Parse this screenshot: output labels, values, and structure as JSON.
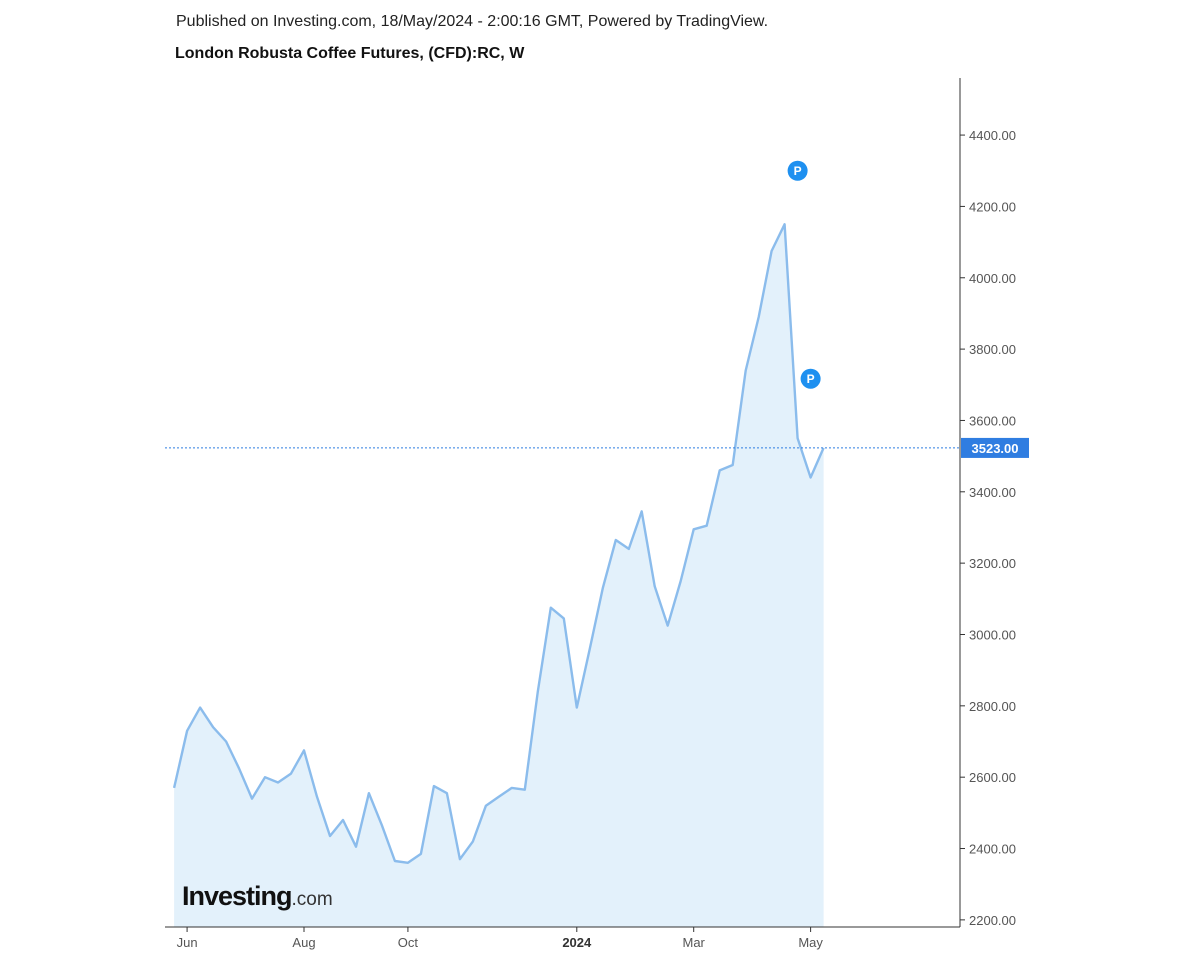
{
  "header": {
    "published": "Published on Investing.com, 18/May/2024 - 2:00:16 GMT, Powered by TradingView.",
    "title": "London Robusta Coffee Futures, (CFD):RC, W"
  },
  "logo": {
    "main": "Investing",
    "suffix": ".com"
  },
  "colors": {
    "line": "#8bbcec",
    "area": "#e3f1fb",
    "price_label_bg": "#2f7de1",
    "marker": "#1e90f0",
    "axis": "#333333"
  },
  "price_marker": {
    "label": "3523.00",
    "value": 3523
  },
  "event_markers": [
    {
      "label": "P",
      "week_index": 48,
      "value": 4300
    },
    {
      "label": "P",
      "week_index": 49,
      "value": 3717
    }
  ],
  "chart_data": {
    "type": "area",
    "title": "London Robusta Coffee Futures, (CFD):RC, W",
    "xlabel": "",
    "ylabel": "",
    "ylim": [
      2180,
      4560
    ],
    "y_ticks": [
      2200,
      2400,
      2600,
      2800,
      3000,
      3200,
      3400,
      3600,
      3800,
      4000,
      4200,
      4400
    ],
    "y_tick_labels": [
      "2200.00",
      "2400.00",
      "2600.00",
      "2800.00",
      "3000.00",
      "3200.00",
      "3400.00",
      "3600.00",
      "3800.00",
      "4000.00",
      "4200.00",
      "4400.00"
    ],
    "x_ticks": [
      {
        "label": "Jun",
        "week_index": 1,
        "bold": false
      },
      {
        "label": "Aug",
        "week_index": 10,
        "bold": false
      },
      {
        "label": "Oct",
        "week_index": 18,
        "bold": false
      },
      {
        "label": "2024",
        "week_index": 31,
        "bold": true
      },
      {
        "label": "Mar",
        "week_index": 40,
        "bold": false
      },
      {
        "label": "May",
        "week_index": 49,
        "bold": false
      }
    ],
    "x_range": [
      -0.7,
      60.5
    ],
    "series": [
      {
        "values": [
          2570,
          2730,
          2795,
          2740,
          2700,
          2625,
          2540,
          2600,
          2585,
          2610,
          2675,
          2545,
          2435,
          2480,
          2405,
          2555,
          2465,
          2365,
          2360,
          2385,
          2575,
          2555,
          2370,
          2420,
          2520,
          2545,
          2570,
          2565,
          2840,
          3075,
          3045,
          2795,
          2960,
          3130,
          3265,
          3240,
          3345,
          3135,
          3025,
          3150,
          3295,
          3305,
          3460,
          3475,
          3740,
          3890,
          4075,
          4150,
          3550,
          3440,
          3523
        ]
      }
    ]
  }
}
